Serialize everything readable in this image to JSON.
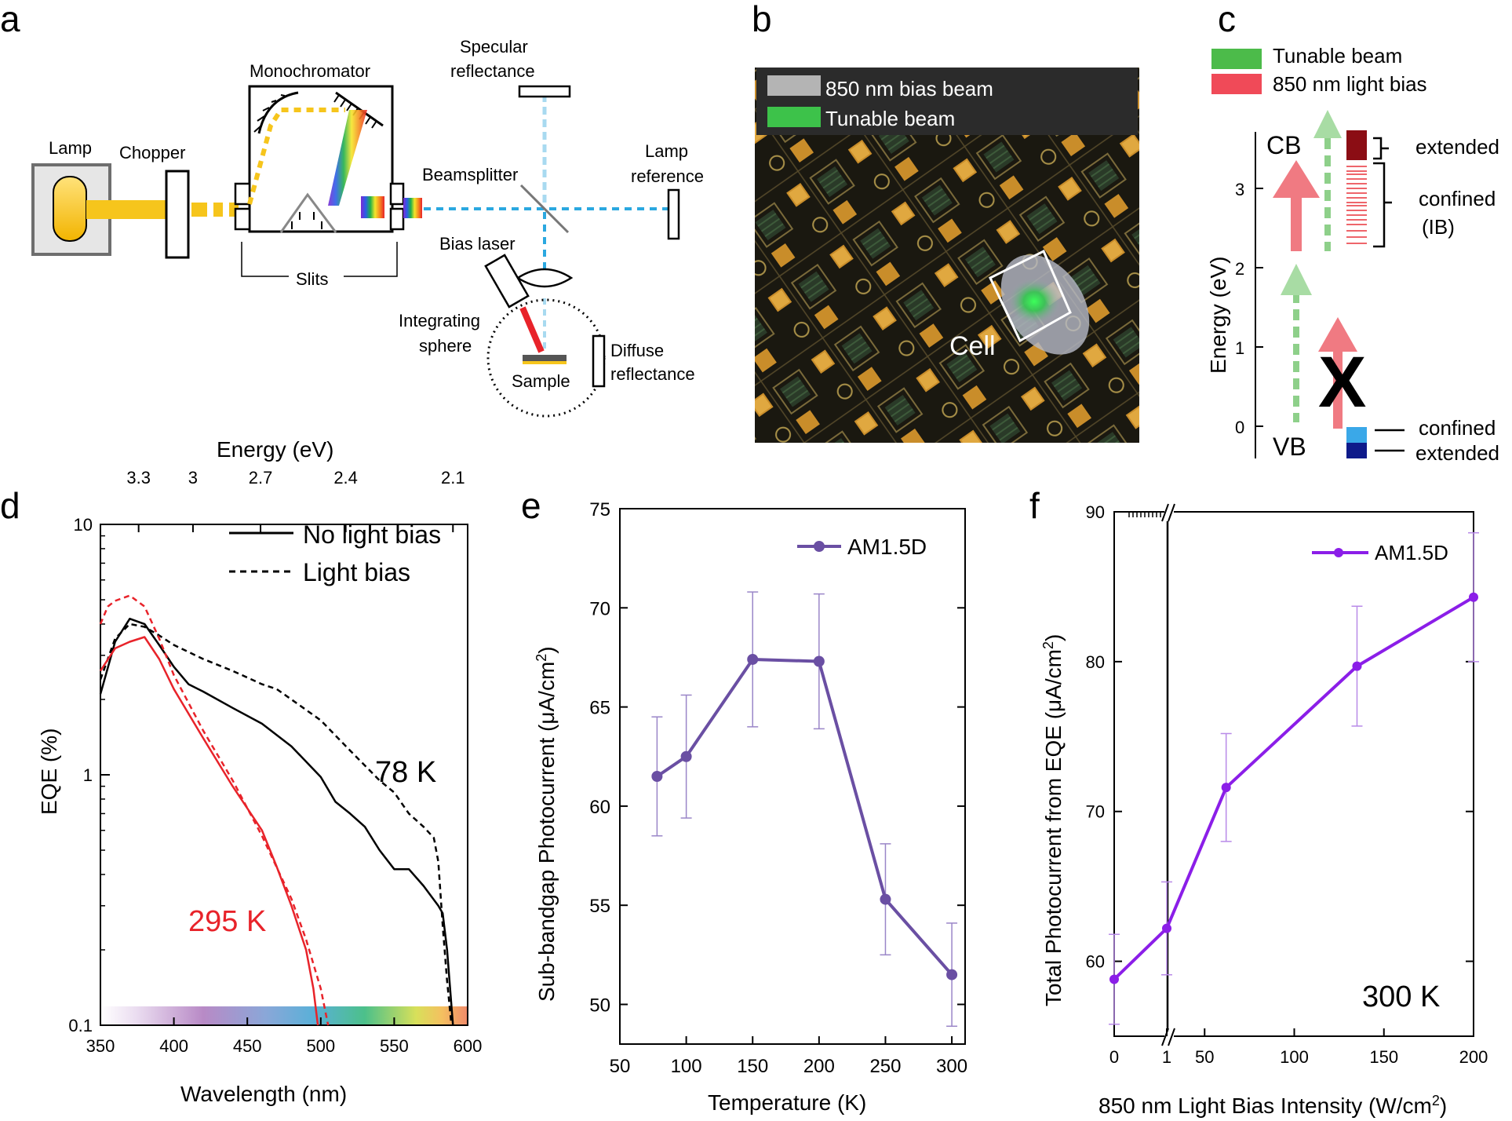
{
  "panels": {
    "a": {
      "letter": "a",
      "labels": {
        "lamp": "Lamp",
        "chopper": "Chopper",
        "monochromator": "Monochromator",
        "slits": "Slits",
        "specular1": "Specular",
        "specular2": "reflectance",
        "beamsplitter": "Beamsplitter",
        "lampref1": "Lamp",
        "lampref2": "reference",
        "biaslaser": "Bias laser",
        "integrating1": "Integrating",
        "integrating2": "sphere",
        "sample": "Sample",
        "diffuse1": "Diffuse",
        "diffuse2": "reflectance"
      }
    },
    "b": {
      "letter": "b",
      "legend_gray": "850 nm bias beam",
      "legend_green": "Tunable beam",
      "cell_label": "Cell"
    },
    "c": {
      "letter": "c",
      "legend_green": "Tunable beam",
      "legend_red": "850 nm light bias",
      "cb": "CB",
      "vb": "VB",
      "extended_top": "extended",
      "confined_top": "confined",
      "ib": "(IB)",
      "confined_bottom": "confined",
      "extended_bottom": "extended",
      "blocked": "X",
      "ylabel": "Energy (eV)",
      "yticks": [
        "0",
        "1",
        "2",
        "3"
      ]
    }
  },
  "chart_data": [
    {
      "panel": "d",
      "type": "line",
      "title": "",
      "xlabel": "Wavelength (nm)",
      "ylabel": "EQE (%)",
      "top_xlabel": "Energy (eV)",
      "x_ticks": [
        "350",
        "400",
        "450",
        "500",
        "550",
        "600"
      ],
      "y_ticks": [
        "0.1",
        "1",
        "10"
      ],
      "top_ticks": [
        {
          "label": "3.3",
          "wl": 376
        },
        {
          "label": "3",
          "wl": 413
        },
        {
          "label": "2.7",
          "wl": 459
        },
        {
          "label": "2.4",
          "wl": 517
        },
        {
          "label": "2.1",
          "wl": 590
        }
      ],
      "xlim": [
        350,
        600
      ],
      "ylim": [
        0.1,
        10
      ],
      "yscale": "log",
      "legend": [
        "No light bias",
        "Light bias"
      ],
      "annotations": [
        "78 K",
        "295 K"
      ],
      "series": [
        {
          "name": "78 K no light bias",
          "color": "#000000",
          "dash": false,
          "x": [
            350,
            360,
            370,
            380,
            390,
            400,
            410,
            420,
            440,
            460,
            480,
            500,
            510,
            520,
            530,
            540,
            550,
            560,
            570,
            580,
            583,
            586,
            590
          ],
          "y": [
            2.1,
            3.4,
            4.2,
            4.0,
            3.3,
            2.7,
            2.3,
            2.15,
            1.85,
            1.6,
            1.3,
            0.98,
            0.78,
            0.7,
            0.62,
            0.5,
            0.42,
            0.42,
            0.36,
            0.3,
            0.28,
            0.2,
            0.1
          ]
        },
        {
          "name": "78 K light bias",
          "color": "#000000",
          "dash": true,
          "x": [
            350,
            360,
            370,
            380,
            390,
            400,
            420,
            440,
            460,
            470,
            480,
            500,
            520,
            540,
            550,
            560,
            570,
            577,
            580,
            583,
            586,
            589
          ],
          "y": [
            2.4,
            3.5,
            4.0,
            3.9,
            3.6,
            3.3,
            2.9,
            2.6,
            2.3,
            2.2,
            2.0,
            1.65,
            1.25,
            0.95,
            0.85,
            0.7,
            0.62,
            0.56,
            0.45,
            0.25,
            0.15,
            0.1
          ]
        },
        {
          "name": "295 K no light bias",
          "color": "#e8232a",
          "dash": false,
          "x": [
            350,
            360,
            370,
            380,
            390,
            400,
            420,
            440,
            460,
            470,
            480,
            490,
            495,
            498
          ],
          "y": [
            2.6,
            3.2,
            3.4,
            3.55,
            2.9,
            2.2,
            1.4,
            0.9,
            0.6,
            0.43,
            0.3,
            0.2,
            0.14,
            0.1
          ]
        },
        {
          "name": "295 K light bias",
          "color": "#e8232a",
          "dash": true,
          "x": [
            350,
            355,
            360,
            370,
            380,
            390,
            400,
            420,
            440,
            460,
            480,
            490,
            500,
            505
          ],
          "y": [
            4.0,
            4.7,
            4.95,
            5.2,
            4.7,
            3.5,
            2.5,
            1.5,
            0.95,
            0.57,
            0.32,
            0.22,
            0.14,
            0.1
          ]
        }
      ]
    },
    {
      "panel": "e",
      "type": "line",
      "xlabel": "Temperature (K)",
      "ylabel_main": "Sub-bandgap Photocurrent (",
      "ylabel_unit": "μA/cm",
      "ylabel_exp": "2",
      "ylabel_close": ")",
      "x_ticks": [
        "50",
        "100",
        "150",
        "200",
        "250",
        "300"
      ],
      "y_ticks": [
        "50",
        "55",
        "60",
        "65",
        "70",
        "75"
      ],
      "xlim": [
        50,
        310
      ],
      "ylim": [
        48,
        75
      ],
      "legend": [
        "AM1.5D"
      ],
      "series": [
        {
          "name": "AM1.5D",
          "color": "#6a4fa3",
          "x": [
            78,
            100,
            150,
            200,
            250,
            300
          ],
          "y": [
            61.5,
            62.5,
            67.4,
            67.3,
            55.3,
            51.5
          ],
          "err": [
            3.0,
            3.1,
            3.4,
            3.4,
            2.8,
            2.6
          ]
        }
      ]
    },
    {
      "panel": "f",
      "type": "line",
      "xlabel_main": "850 nm Light Bias Intensity (W/cm",
      "xlabel_exp": "2",
      "xlabel_close": ")",
      "ylabel_main": "Total Photocurrent from EQE (",
      "ylabel_unit": "μA/cm",
      "ylabel_exp": "2",
      "ylabel_close": ")",
      "x_ticks_left": [
        "0",
        "1"
      ],
      "x_ticks_right": [
        "50",
        "100",
        "150",
        "200"
      ],
      "y_ticks": [
        "60",
        "70",
        "80",
        "90"
      ],
      "xlim_right": [
        0,
        200
      ],
      "ylim": [
        55,
        90
      ],
      "legend": [
        "AM1.5D"
      ],
      "annotation": "300 K",
      "series": [
        {
          "name": "AM1.5D",
          "color": "#8b1ee8",
          "x": [
            0,
            1,
            62,
            135,
            200
          ],
          "y": [
            58.8,
            62.2,
            71.6,
            79.7,
            84.3
          ],
          "err": [
            3.0,
            3.1,
            3.6,
            4.0,
            4.3
          ]
        }
      ]
    }
  ]
}
